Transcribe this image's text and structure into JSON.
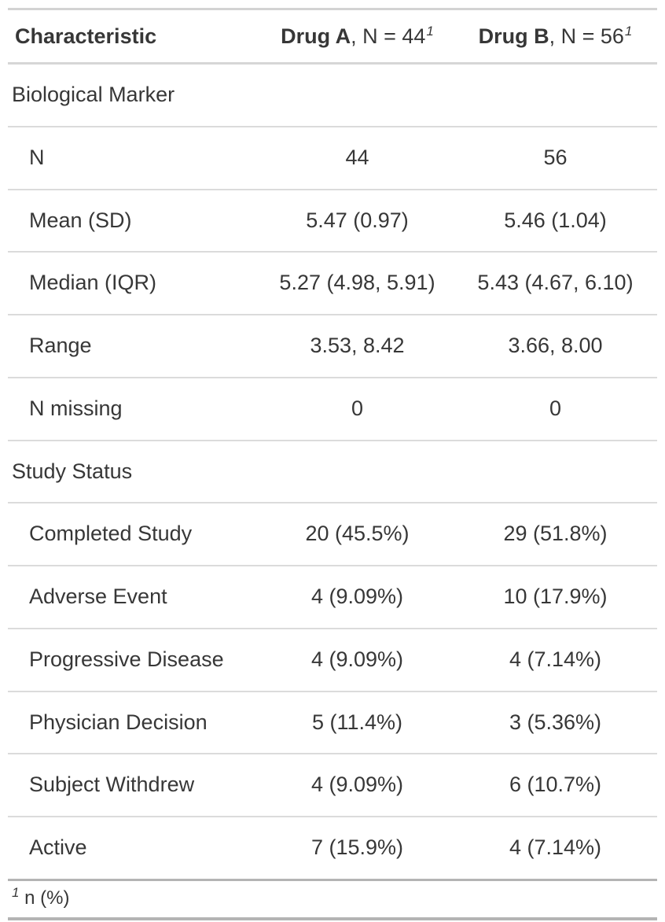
{
  "chart_data": {
    "type": "table",
    "columns": [
      {
        "key": "label",
        "label": "Characteristic"
      },
      {
        "key": "drug_a",
        "name": "Drug A",
        "suffix": ", N = 44",
        "footnote_mark": "1"
      },
      {
        "key": "drug_b",
        "name": "Drug B",
        "suffix": ", N = 56",
        "footnote_mark": "1"
      }
    ],
    "rows": [
      {
        "type": "group",
        "label": "Biological Marker",
        "drug_a": "",
        "drug_b": ""
      },
      {
        "type": "item",
        "label": "N",
        "drug_a": "44",
        "drug_b": "56"
      },
      {
        "type": "item",
        "label": "Mean (SD)",
        "drug_a": "5.47 (0.97)",
        "drug_b": "5.46 (1.04)"
      },
      {
        "type": "item",
        "label": "Median (IQR)",
        "drug_a": "5.27 (4.98, 5.91)",
        "drug_b": "5.43 (4.67, 6.10)"
      },
      {
        "type": "item",
        "label": "Range",
        "drug_a": "3.53, 8.42",
        "drug_b": "3.66, 8.00"
      },
      {
        "type": "item",
        "label": "N missing",
        "drug_a": "0",
        "drug_b": "0"
      },
      {
        "type": "group",
        "label": "Study Status",
        "drug_a": "",
        "drug_b": ""
      },
      {
        "type": "item",
        "label": "Completed Study",
        "drug_a": "20 (45.5%)",
        "drug_b": "29 (51.8%)"
      },
      {
        "type": "item",
        "label": "Adverse Event",
        "drug_a": "4 (9.09%)",
        "drug_b": "10 (17.9%)"
      },
      {
        "type": "item",
        "label": "Progressive Disease",
        "drug_a": "4 (9.09%)",
        "drug_b": "4 (7.14%)"
      },
      {
        "type": "item",
        "label": "Physician Decision",
        "drug_a": "5 (11.4%)",
        "drug_b": "3 (5.36%)"
      },
      {
        "type": "item",
        "label": "Subject Withdrew",
        "drug_a": "4 (9.09%)",
        "drug_b": "6 (10.7%)"
      },
      {
        "type": "item",
        "label": "Active",
        "drug_a": "7 (15.9%)",
        "drug_b": "4 (7.14%)"
      }
    ],
    "footnote": {
      "mark": "1",
      "text": "n (%)"
    },
    "layout_hints": {
      "value_alignment": "center",
      "grid": "horizontal-rules-only"
    }
  },
  "colors": {
    "text": "#373737",
    "outer_border": "#b4b4b4",
    "header_border": "#d3d3d3",
    "row_divider": "#dbdbdb",
    "background": "#ffffff"
  }
}
